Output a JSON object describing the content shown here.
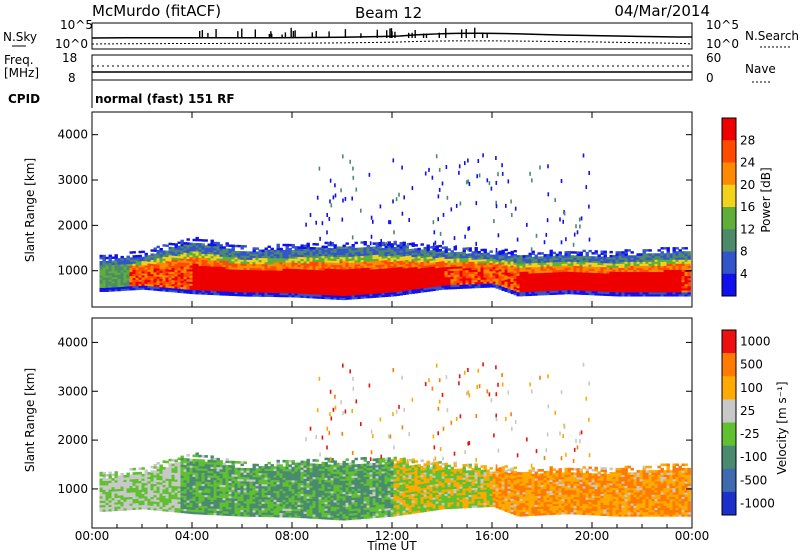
{
  "header": {
    "station": "McMurdo (fitACF)",
    "beam": "Beam 12",
    "date": "04/Mar/2014"
  },
  "noise_panel": {
    "left_label": "N.Sky",
    "right_label": "N.Search",
    "top_tick": "10^5",
    "bottom_tick": "10^0"
  },
  "freq_panel": {
    "left_label_line1": "Freq.",
    "left_label_line2": "[MHz]",
    "left_ticks": [
      "18",
      "8"
    ],
    "right_label": "Nave",
    "right_ticks": [
      "60",
      "0"
    ],
    "cpid_label": "CPID",
    "cpid_text": "normal (fast) 151 RF"
  },
  "colors": {
    "power_scale": [
      "#1010ee",
      "#3355cc",
      "#4d8a6a",
      "#5fae3a",
      "#f2d21b",
      "#ff8a00",
      "#ff4a00",
      "#ee0000"
    ],
    "velocity_scale": [
      "#1a2fcc",
      "#3e6ab0",
      "#4a8a70",
      "#5fc030",
      "#c8c8c8",
      "#ffaa00",
      "#ff7a00",
      "#ee1010"
    ]
  },
  "chart_data": [
    {
      "type": "heatmap",
      "name": "power",
      "ylabel": "Slant Range [km]",
      "ylim": [
        200,
        4500
      ],
      "y_ticks": [
        "4000",
        "3000",
        "2000",
        "1000"
      ],
      "y_tick_values": [
        4000,
        3000,
        2000,
        1000
      ],
      "colorbar_label": "Power [dB]",
      "colorbar_ticks": [
        "28",
        "24",
        "20",
        "16",
        "12",
        "8",
        "4"
      ],
      "bands": [
        {
          "t": 0.5,
          "lo": 600,
          "hi": 1200
        },
        {
          "t": 2.0,
          "lo": 650,
          "hi": 1300
        },
        {
          "t": 4.0,
          "lo": 550,
          "hi": 1600
        },
        {
          "t": 6.0,
          "lo": 500,
          "hi": 1400
        },
        {
          "t": 8.0,
          "lo": 480,
          "hi": 1450
        },
        {
          "t": 10.0,
          "lo": 420,
          "hi": 1500
        },
        {
          "t": 12.0,
          "lo": 500,
          "hi": 1500
        },
        {
          "t": 14.0,
          "lo": 650,
          "hi": 1400
        },
        {
          "t": 16.0,
          "lo": 700,
          "hi": 1350
        },
        {
          "t": 17.0,
          "lo": 500,
          "hi": 1300
        },
        {
          "t": 19.0,
          "lo": 550,
          "hi": 1300
        },
        {
          "t": 21.0,
          "lo": 500,
          "hi": 1300
        },
        {
          "t": 23.5,
          "lo": 500,
          "hi": 1400
        }
      ]
    },
    {
      "type": "heatmap",
      "name": "velocity",
      "ylabel": "Slant Range [km]",
      "ylim": [
        200,
        4500
      ],
      "y_ticks": [
        "4000",
        "3000",
        "2000",
        "1000"
      ],
      "y_tick_values": [
        4000,
        3000,
        2000,
        1000
      ],
      "colorbar_label": "Velocity [m s⁻¹]",
      "colorbar_ticks": [
        "1000",
        "500",
        "100",
        "25",
        "-25",
        "-100",
        "-500",
        "-1000"
      ],
      "xlabel": "Time UT",
      "x_ticks": [
        "00:00",
        "04:00",
        "08:00",
        "12:00",
        "16:00",
        "20:00",
        "00:00"
      ],
      "x_tick_values": [
        0,
        4,
        8,
        12,
        16,
        20,
        24
      ],
      "xlim": [
        0,
        24
      ]
    }
  ]
}
